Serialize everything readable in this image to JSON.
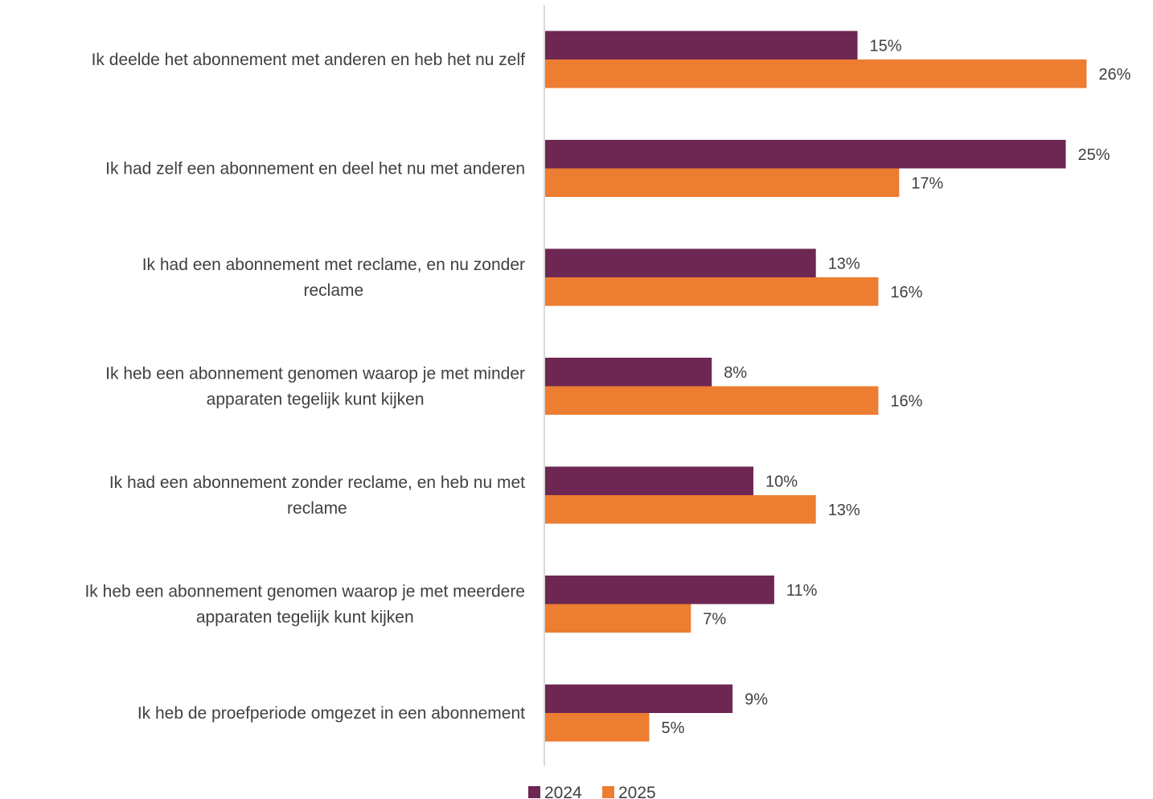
{
  "chart_data": {
    "type": "bar",
    "orientation": "horizontal",
    "categories": [
      [
        "Ik deelde het abonnement met anderen en heb het nu zelf"
      ],
      [
        "Ik had zelf een abonnement en deel het nu met anderen"
      ],
      [
        "Ik had een abonnement met reclame, en nu zonder",
        "reclame"
      ],
      [
        "Ik heb een abonnement genomen waarop je met minder",
        "apparaten tegelijk kunt kijken"
      ],
      [
        "Ik had een abonnement zonder reclame, en heb nu met",
        "reclame"
      ],
      [
        "Ik heb een abonnement genomen waarop je met meerdere",
        "apparaten tegelijk kunt kijken"
      ],
      [
        "Ik heb de proefperiode omgezet in een abonnement"
      ]
    ],
    "series": [
      {
        "name": "2024",
        "color": "#6E2752",
        "values": [
          15,
          25,
          13,
          8,
          10,
          11,
          9
        ],
        "labels": [
          "15%",
          "25%",
          "13%",
          "8%",
          "10%",
          "11%",
          "9%"
        ]
      },
      {
        "name": "2025",
        "color": "#ED7D31",
        "values": [
          26,
          17,
          16,
          16,
          13,
          7,
          5
        ],
        "labels": [
          "26%",
          "17%",
          "16%",
          "16%",
          "13%",
          "7%",
          "5%"
        ]
      }
    ],
    "xlim": [
      0,
      27
    ],
    "unit": "%",
    "grid": false,
    "legend": "bottom",
    "axis_color": "#D9D9D9"
  }
}
